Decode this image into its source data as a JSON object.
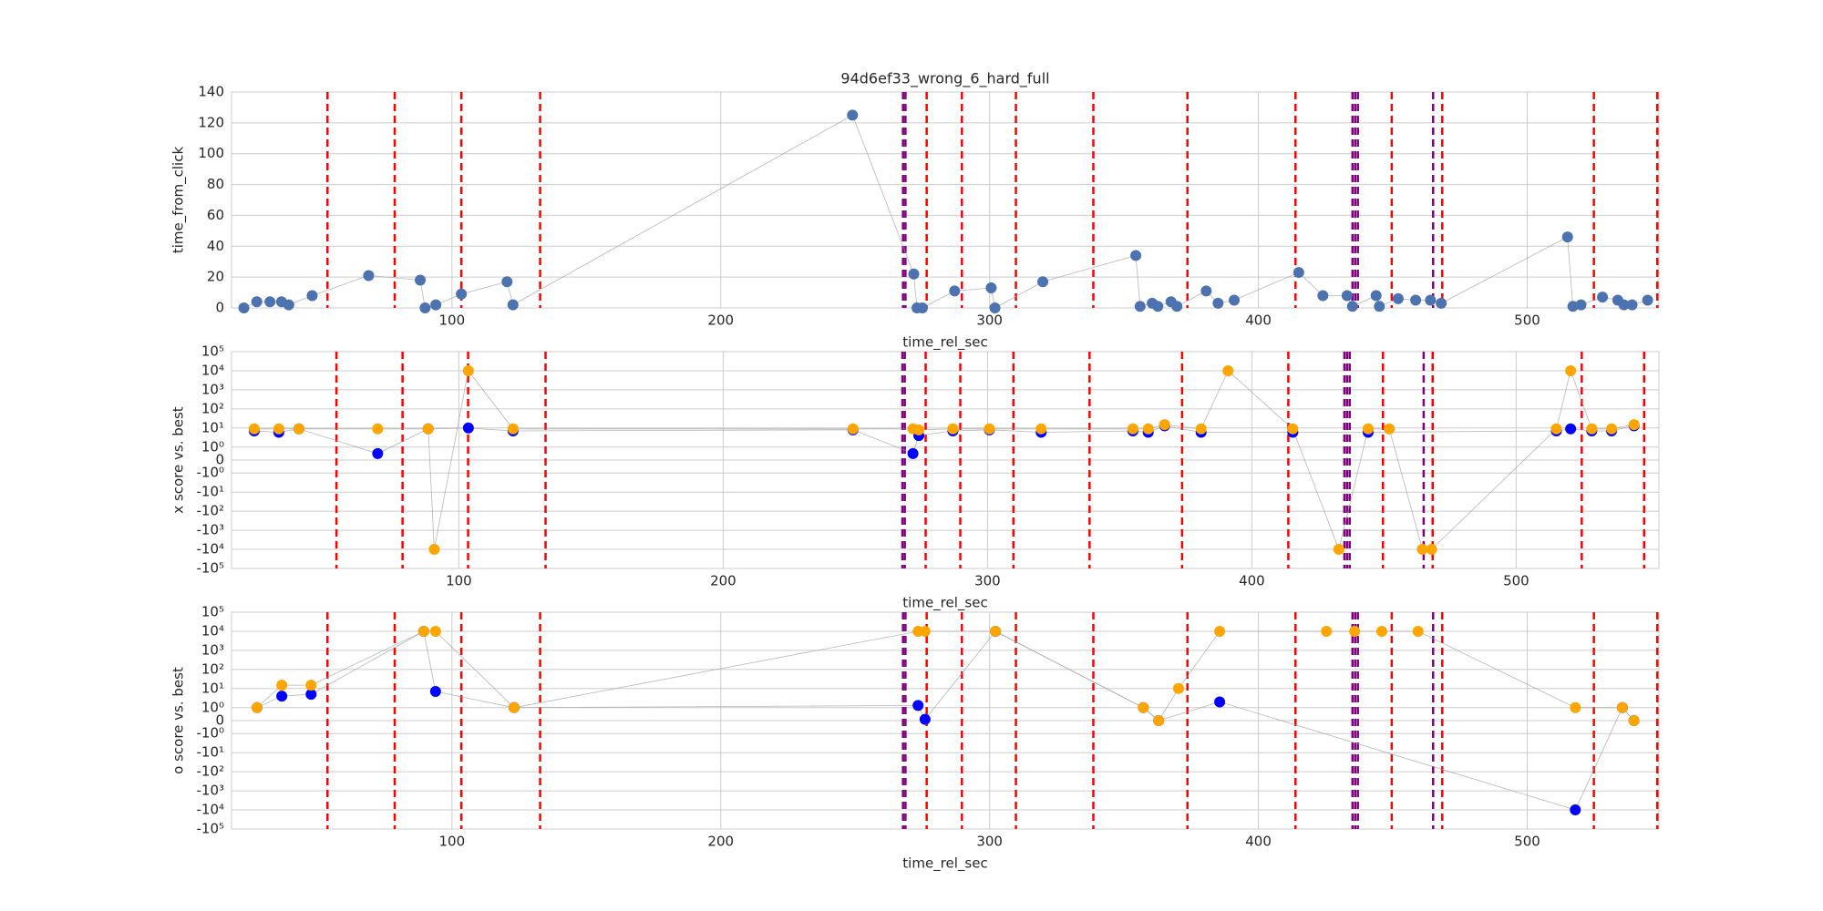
{
  "chart_data": [
    {
      "type": "scatter",
      "title": "94d6ef33_wrong_6_hard_full",
      "xlabel": "time_rel_sec",
      "ylabel": "time_from_click",
      "xlim": [
        18,
        549
      ],
      "ylim": [
        0,
        140
      ],
      "xticks": [
        100,
        200,
        300,
        400,
        500
      ],
      "yticks": [
        0,
        20,
        40,
        60,
        80,
        100,
        120,
        140
      ],
      "grid": true,
      "yscale": "linear",
      "series": [
        {
          "color": "#4c72b0",
          "x": [
            22.6,
            27.4,
            32.3,
            36.6,
            39.3,
            48,
            69,
            88.2,
            90,
            94,
            103.5,
            120.5,
            122.7,
            249,
            271.8,
            273,
            275,
            287,
            300.6,
            302,
            319.8,
            354.4,
            356,
            360.5,
            362.6,
            367.5,
            369.7,
            380.6,
            385,
            391,
            415,
            424,
            433,
            435,
            443.8,
            445,
            452,
            458.5,
            464,
            468,
            515,
            517,
            520,
            528,
            533.7,
            536,
            539,
            544.8
          ],
          "values": [
            0,
            4,
            4,
            4,
            2,
            8,
            21,
            18,
            0,
            2,
            9,
            17,
            2,
            125,
            22,
            0,
            0,
            11,
            13,
            0,
            17,
            34,
            1,
            3,
            1,
            4,
            1,
            11,
            3,
            5,
            23,
            8,
            8,
            1,
            8,
            1,
            6,
            5,
            5,
            3,
            46,
            1,
            2,
            7,
            5,
            2,
            2,
            5
          ]
        }
      ],
      "vlines": [
        {
          "color": "#ff0000",
          "x": [
            53.7,
            78.7,
            103.5,
            132.8,
            276.6,
            289.7,
            309.8,
            338.6,
            373.6,
            413.8,
            449.6,
            468.4,
            524.8,
            548.4
          ]
        },
        {
          "color": "#800080",
          "x": [
            267.8,
            268.7,
            435,
            436,
            437,
            465
          ]
        }
      ]
    },
    {
      "type": "scatter",
      "xlabel": "time_rel_sec",
      "ylabel": "x score vs. best",
      "xlim": [
        14,
        554
      ],
      "ylim": [
        -100000,
        100000
      ],
      "xticks": [
        100,
        200,
        300,
        400,
        500
      ],
      "yticks": [
        {
          "value": -100000,
          "label": "-10⁵"
        },
        {
          "value": -10000,
          "label": "-10⁴"
        },
        {
          "value": -1000,
          "label": "-10³"
        },
        {
          "value": -100,
          "label": "-10²"
        },
        {
          "value": -10,
          "label": "-10¹"
        },
        {
          "value": -1,
          "label": "-10⁰"
        },
        0,
        {
          "value": 1,
          "label": "10⁰"
        },
        {
          "value": 10,
          "label": "10¹"
        },
        {
          "value": 100,
          "label": "10²"
        },
        {
          "value": 1000,
          "label": "10³"
        },
        {
          "value": 10000,
          "label": "10⁴"
        },
        {
          "value": 100000,
          "label": "10⁵"
        }
      ],
      "grid": true,
      "yscale": "symlog",
      "series": [
        {
          "color": "#0000ff",
          "x": [
            22.6,
            31.9,
            39.5,
            69.3,
            88.4,
            103.6,
            120.5,
            249.1,
            271.8,
            274,
            286.9,
            300.7,
            320.3,
            355,
            360.8,
            367,
            380.8,
            415.5,
            444,
            515.2,
            520.6,
            528.6,
            536.1,
            544.6
          ],
          "values": [
            7,
            6,
            9,
            0.5,
            9,
            10,
            7,
            8,
            0.5,
            4,
            7,
            8,
            6,
            7,
            6,
            13,
            6,
            6,
            6,
            7,
            9,
            7,
            7,
            13
          ]
        },
        {
          "color": "#ffa500",
          "x": [
            22.6,
            31.9,
            39.5,
            69.3,
            88.4,
            90.7,
            103.6,
            120.5,
            249.1,
            271.8,
            274,
            286.9,
            300.7,
            320.3,
            355,
            360.8,
            367,
            380.8,
            391,
            415.5,
            432.9,
            444,
            452,
            464.5,
            468,
            515.2,
            520.6,
            528.6,
            536.1,
            544.6
          ],
          "values": [
            9,
            9,
            9,
            9,
            9,
            -10000,
            10000,
            9,
            9,
            9,
            8,
            9,
            9,
            9,
            9,
            9,
            15,
            9,
            10000,
            9,
            -10000,
            9,
            9,
            -10000,
            -10000,
            9,
            10000,
            9,
            9,
            15
          ]
        }
      ],
      "vlines": [
        {
          "color": "#ff0000",
          "x": [
            53.7,
            78.7,
            103.5,
            132.8,
            276.6,
            289.7,
            309.8,
            338.6,
            373.6,
            413.8,
            449.6,
            468.4,
            524.8,
            548.4
          ]
        },
        {
          "color": "#800080",
          "x": [
            267.8,
            268.7,
            435,
            436,
            437,
            465
          ]
        }
      ]
    },
    {
      "type": "scatter",
      "xlabel": "time_rel_sec",
      "ylabel": "o score vs. best",
      "xlim": [
        18,
        549
      ],
      "ylim": [
        -100000,
        100000
      ],
      "xticks": [
        100,
        200,
        300,
        400,
        500
      ],
      "yticks": [
        {
          "value": -100000,
          "label": "-10⁵"
        },
        {
          "value": -10000,
          "label": "-10⁴"
        },
        {
          "value": -1000,
          "label": "-10³"
        },
        {
          "value": -100,
          "label": "-10²"
        },
        {
          "value": -10,
          "label": "-10¹"
        },
        {
          "value": -1,
          "label": "-10⁰"
        },
        0,
        {
          "value": 1,
          "label": "10⁰"
        },
        {
          "value": 10,
          "label": "10¹"
        },
        {
          "value": 100,
          "label": "10²"
        },
        {
          "value": 1000,
          "label": "10³"
        },
        {
          "value": 10000,
          "label": "10⁴"
        },
        {
          "value": 100000,
          "label": "10⁵"
        }
      ],
      "grid": true,
      "yscale": "symlog",
      "series": [
        {
          "color": "#0000ff",
          "x": [
            27.5,
            36.7,
            47.6,
            89.5,
            93.9,
            123.1,
            273.4,
            276,
            302.2,
            357.2,
            362.9,
            385.6,
            517.9,
            535.4,
            539.7
          ],
          "values": [
            1,
            4,
            5,
            10000,
            7,
            1,
            1.3,
            0.1,
            10000,
            1,
            0,
            2,
            -10000,
            1,
            0
          ]
        },
        {
          "color": "#ffa500",
          "x": [
            27.5,
            36.7,
            47.6,
            89.5,
            93.9,
            123.1,
            273.4,
            276,
            302.2,
            357.2,
            362.9,
            370.3,
            385.6,
            425.3,
            435.8,
            445.9,
            459.4,
            517.9,
            535.4,
            539.7
          ],
          "values": [
            1,
            15,
            15,
            10000,
            10000,
            1,
            10000,
            10000,
            10000,
            1,
            0,
            10,
            10000,
            10000,
            10000,
            10000,
            10000,
            1,
            1,
            0
          ]
        }
      ],
      "vlines": [
        {
          "color": "#ff0000",
          "x": [
            53.7,
            78.7,
            103.5,
            132.8,
            276.6,
            289.7,
            309.8,
            338.6,
            373.6,
            413.8,
            449.6,
            468.4,
            524.8,
            548.4
          ]
        },
        {
          "color": "#800080",
          "x": [
            267.8,
            268.7,
            435,
            436,
            437,
            465
          ]
        }
      ]
    }
  ]
}
